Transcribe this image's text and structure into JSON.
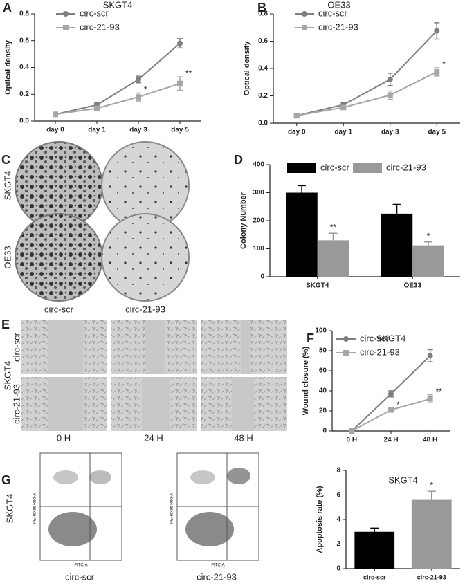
{
  "panel_labels": [
    "A",
    "B",
    "C",
    "D",
    "E",
    "F",
    "G"
  ],
  "colony": {
    "rows": [
      "SKGT4",
      "OE33"
    ],
    "columns": [
      "circ-scr",
      "circ-21-93"
    ]
  },
  "wound": {
    "cell_line": "SKGT4",
    "rows": [
      "circ-scr",
      "circ-21-93"
    ],
    "columns": [
      "0 H",
      "24 H",
      "48 H"
    ]
  },
  "flow": {
    "cell_line": "SKGT4",
    "columns": [
      "circ-scr",
      "circ-21-93"
    ],
    "y_label": "PE-Texas Red-A",
    "x_label": "FITC-A"
  },
  "chart_data": [
    {
      "type": "line",
      "title": "SKGT4",
      "y_label": "Optical density",
      "categories": [
        "day 0",
        "day 1",
        "day 3",
        "day 5"
      ],
      "series": [
        {
          "name": "circ-scr",
          "color": "#7f7f7f",
          "marker": "circle",
          "values": [
            0.05,
            0.12,
            0.31,
            0.58
          ],
          "errors": [
            0.01,
            0.015,
            0.025,
            0.035
          ],
          "significance": [
            null,
            null,
            null,
            null
          ]
        },
        {
          "name": "circ-21-93",
          "color": "#a6a6a6",
          "marker": "square",
          "values": [
            0.05,
            0.095,
            0.18,
            0.28
          ],
          "errors": [
            0.01,
            0.01,
            0.03,
            0.05
          ],
          "significance": [
            null,
            null,
            "*",
            "**"
          ]
        }
      ],
      "ylim": [
        0,
        0.8
      ],
      "yticks": [
        {
          "value": 0,
          "label": "0.0"
        },
        0.2,
        0.4,
        0.6,
        0.8
      ]
    },
    {
      "type": "line",
      "title": "OE33",
      "y_label": "Optical density",
      "categories": [
        "day 0",
        "day 1",
        "day 3",
        "day 5"
      ],
      "series": [
        {
          "name": "circ-scr",
          "color": "#7f7f7f",
          "marker": "circle",
          "values": [
            0.055,
            0.135,
            0.32,
            0.675
          ],
          "errors": [
            0.01,
            0.015,
            0.045,
            0.06
          ],
          "significance": [
            null,
            null,
            null,
            null
          ]
        },
        {
          "name": "circ-21-93",
          "color": "#a6a6a6",
          "marker": "square",
          "values": [
            0.055,
            0.115,
            0.205,
            0.375
          ],
          "errors": [
            0.01,
            0.01,
            0.03,
            0.03
          ],
          "significance": [
            null,
            null,
            null,
            "*"
          ]
        }
      ],
      "ylim": [
        0,
        0.8
      ],
      "yticks": [
        {
          "value": 0,
          "label": "0.0"
        },
        0.2,
        0.4,
        0.6,
        0.8
      ]
    },
    {
      "type": "bar",
      "y_label": "Colony Number",
      "categories": [
        "SKGT4",
        "OE33"
      ],
      "series": [
        {
          "name": "circ-scr",
          "color": "#000000",
          "values": [
            300,
            225
          ],
          "errors": [
            25,
            33
          ],
          "significance": [
            null,
            null
          ]
        },
        {
          "name": "circ-21-93",
          "color": "#999999",
          "values": [
            130,
            112
          ],
          "errors": [
            25,
            12
          ],
          "significance": [
            "**",
            "*"
          ]
        }
      ],
      "ylim": [
        0,
        400
      ],
      "yticks": [
        0,
        100,
        200,
        300,
        400
      ]
    },
    {
      "type": "line",
      "title": "SKGT4",
      "y_label": "Wound closure (%)",
      "categories": [
        "0 H",
        "24 H",
        "48 H"
      ],
      "series": [
        {
          "name": "circ-scr",
          "color": "#7f7f7f",
          "marker": "circle",
          "values": [
            0,
            37,
            75
          ],
          "errors": [
            0,
            3,
            6
          ],
          "significance": [
            null,
            null,
            null
          ]
        },
        {
          "name": "circ-21-93",
          "color": "#a6a6a6",
          "marker": "square",
          "values": [
            0,
            21,
            32
          ],
          "errors": [
            0,
            2,
            4
          ],
          "significance": [
            null,
            "*",
            "**"
          ]
        }
      ],
      "ylim": [
        0,
        100
      ],
      "yticks": [
        0,
        20,
        40,
        60,
        80,
        100
      ]
    },
    {
      "type": "bar",
      "title": "SKGT4",
      "y_label": "Apoptosis rate (%)",
      "categories": [
        "circ-scr",
        "circ-21-93"
      ],
      "series": [
        {
          "colors": [
            "#000000",
            "#999999"
          ],
          "values": [
            3.0,
            5.6
          ],
          "errors": [
            0.3,
            0.7
          ],
          "significance": [
            null,
            "*"
          ]
        }
      ],
      "ylim": [
        0,
        8
      ],
      "yticks": [
        0,
        2,
        4,
        6,
        8
      ]
    }
  ]
}
